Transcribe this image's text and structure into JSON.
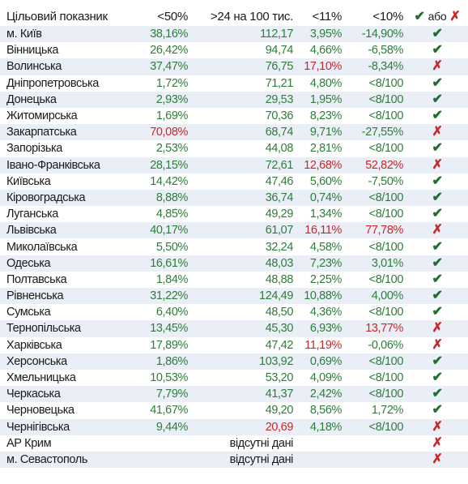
{
  "header": {
    "target": "Цільовий показник",
    "col1": "<50%",
    "col2": ">24 на 100 тис.",
    "col3": "<11%",
    "col4": "<10%",
    "check_icon": "check-icon",
    "or": "або",
    "cross_icon": "cross-icon"
  },
  "colors": {
    "green": "#2e7d3a",
    "red": "#c62828"
  },
  "na_text": "відсутні дані",
  "rows": [
    {
      "region": "м. Київ",
      "v1": "38,16%",
      "v2": "112,17",
      "v3": "3,95%",
      "v4": "-14,90%",
      "c1": "g",
      "c2": "g",
      "c3": "g",
      "c4": "g",
      "status": "check"
    },
    {
      "region": "Вінницька",
      "v1": "26,42%",
      "v2": "94,74",
      "v3": "4,66%",
      "v4": "-6,58%",
      "c1": "g",
      "c2": "g",
      "c3": "g",
      "c4": "g",
      "status": "check"
    },
    {
      "region": "Волинська",
      "v1": "37,47%",
      "v2": "76,75",
      "v3": "17,10%",
      "v4": "-8,34%",
      "c1": "g",
      "c2": "g",
      "c3": "r",
      "c4": "g",
      "status": "cross"
    },
    {
      "region": "Дніпропетровська",
      "v1": "1,72%",
      "v2": "71,21",
      "v3": "4,80%",
      "v4": "<8/100",
      "c1": "g",
      "c2": "g",
      "c3": "g",
      "c4": "g",
      "status": "check"
    },
    {
      "region": "Донецька",
      "v1": "2,93%",
      "v2": "29,53",
      "v3": "1,95%",
      "v4": "<8/100",
      "c1": "g",
      "c2": "g",
      "c3": "g",
      "c4": "g",
      "status": "check"
    },
    {
      "region": "Житомирська",
      "v1": "1,69%",
      "v2": "70,36",
      "v3": "8,23%",
      "v4": "<8/100",
      "c1": "g",
      "c2": "g",
      "c3": "g",
      "c4": "g",
      "status": "check"
    },
    {
      "region": "Закарпатська",
      "v1": "70,08%",
      "v2": "68,74",
      "v3": "9,71%",
      "v4": "-27,55%",
      "c1": "r",
      "c2": "g",
      "c3": "g",
      "c4": "g",
      "status": "cross"
    },
    {
      "region": "Запорізька",
      "v1": "2,53%",
      "v2": "44,08",
      "v3": "2,81%",
      "v4": "<8/100",
      "c1": "g",
      "c2": "g",
      "c3": "g",
      "c4": "g",
      "status": "check"
    },
    {
      "region": "Івано-Франківська",
      "v1": "28,15%",
      "v2": "72,61",
      "v3": "12,68%",
      "v4": "52,82%",
      "c1": "g",
      "c2": "g",
      "c3": "r",
      "c4": "r",
      "status": "cross"
    },
    {
      "region": "Київська",
      "v1": "14,42%",
      "v2": "47,46",
      "v3": "5,60%",
      "v4": "-7,50%",
      "c1": "g",
      "c2": "g",
      "c3": "g",
      "c4": "g",
      "status": "check"
    },
    {
      "region": "Кіровоградська",
      "v1": "8,88%",
      "v2": "36,74",
      "v3": "0,74%",
      "v4": "<8/100",
      "c1": "g",
      "c2": "g",
      "c3": "g",
      "c4": "g",
      "status": "check"
    },
    {
      "region": "Луганська",
      "v1": "4,85%",
      "v2": "49,29",
      "v3": "1,34%",
      "v4": "<8/100",
      "c1": "g",
      "c2": "g",
      "c3": "g",
      "c4": "g",
      "status": "check"
    },
    {
      "region": "Львівська",
      "v1": "40,17%",
      "v2": "61,07",
      "v3": "16,11%",
      "v4": "77,78%",
      "c1": "g",
      "c2": "g",
      "c3": "r",
      "c4": "r",
      "status": "cross"
    },
    {
      "region": "Миколаївська",
      "v1": "5,50%",
      "v2": "32,24",
      "v3": "4,58%",
      "v4": "<8/100",
      "c1": "g",
      "c2": "g",
      "c3": "g",
      "c4": "g",
      "status": "check"
    },
    {
      "region": "Одеська",
      "v1": "16,61%",
      "v2": "48,03",
      "v3": "7,23%",
      "v4": "3,01%",
      "c1": "g",
      "c2": "g",
      "c3": "g",
      "c4": "g",
      "status": "check"
    },
    {
      "region": "Полтавська",
      "v1": "1,84%",
      "v2": "48,88",
      "v3": "2,25%",
      "v4": "<8/100",
      "c1": "g",
      "c2": "g",
      "c3": "g",
      "c4": "g",
      "status": "check"
    },
    {
      "region": "Рівненська",
      "v1": "31,22%",
      "v2": "124,49",
      "v3": "10,88%",
      "v4": "4,00%",
      "c1": "g",
      "c2": "g",
      "c3": "g",
      "c4": "g",
      "status": "check"
    },
    {
      "region": "Сумська",
      "v1": "6,40%",
      "v2": "48,50",
      "v3": "4,36%",
      "v4": "<8/100",
      "c1": "g",
      "c2": "g",
      "c3": "g",
      "c4": "g",
      "status": "check"
    },
    {
      "region": "Тернопільська",
      "v1": "13,45%",
      "v2": "45,30",
      "v3": "6,93%",
      "v4": "13,77%",
      "c1": "g",
      "c2": "g",
      "c3": "g",
      "c4": "r",
      "status": "cross"
    },
    {
      "region": "Харківська",
      "v1": "17,89%",
      "v2": "47,42",
      "v3": "11,19%",
      "v4": "-0,06%",
      "c1": "g",
      "c2": "g",
      "c3": "r",
      "c4": "g",
      "status": "cross"
    },
    {
      "region": "Херсонська",
      "v1": "1,86%",
      "v2": "103,92",
      "v3": "0,69%",
      "v4": "<8/100",
      "c1": "g",
      "c2": "g",
      "c3": "g",
      "c4": "g",
      "status": "check"
    },
    {
      "region": "Хмельницька",
      "v1": "10,53%",
      "v2": "53,20",
      "v3": "4,09%",
      "v4": "<8/100",
      "c1": "g",
      "c2": "g",
      "c3": "g",
      "c4": "g",
      "status": "check"
    },
    {
      "region": "Черкаська",
      "v1": "7,79%",
      "v2": "41,37",
      "v3": "2,42%",
      "v4": "<8/100",
      "c1": "g",
      "c2": "g",
      "c3": "g",
      "c4": "g",
      "status": "check"
    },
    {
      "region": "Черновецька",
      "v1": "41,67%",
      "v2": "49,20",
      "v3": "8,56%",
      "v4": "1,72%",
      "c1": "g",
      "c2": "g",
      "c3": "g",
      "c4": "g",
      "status": "check"
    },
    {
      "region": "Чернігівська",
      "v1": "9,44%",
      "v2": "20,69",
      "v3": "4,18%",
      "v4": "<8/100",
      "c1": "g",
      "c2": "r",
      "c3": "g",
      "c4": "g",
      "status": "cross"
    },
    {
      "region": "АР Крим",
      "na": true,
      "status": "cross"
    },
    {
      "region": "м. Севастополь",
      "na": true,
      "status": "cross"
    }
  ]
}
